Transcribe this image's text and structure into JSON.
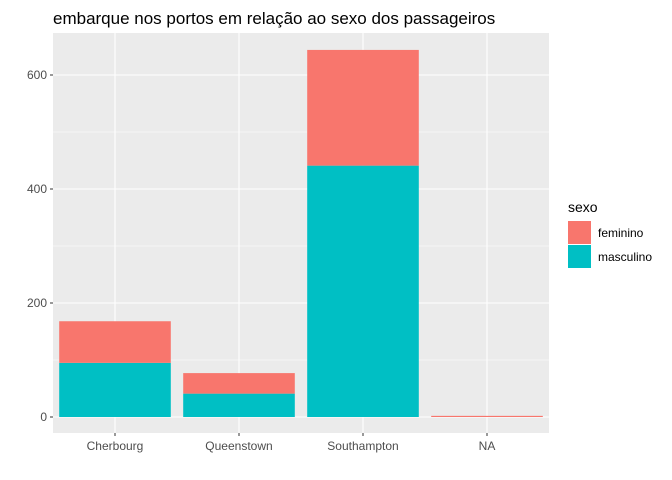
{
  "chart_data": {
    "type": "bar",
    "stacked": true,
    "title": "embarque nos portos em relação ao sexo dos passageiros",
    "xlabel": "",
    "ylabel": "",
    "categories": [
      "Cherbourg",
      "Queenstown",
      "Southampton",
      "NA"
    ],
    "series": [
      {
        "name": "feminino",
        "color": "#F8766D",
        "values": [
          73,
          36,
          203,
          2
        ]
      },
      {
        "name": "masculino",
        "color": "#00BFC4",
        "values": [
          95,
          41,
          441,
          0
        ]
      }
    ],
    "yticks": [
      0,
      200,
      400,
      600
    ],
    "ylim": [
      -32,
      677
    ],
    "grid": true,
    "legend": {
      "title": "sexo",
      "position": "right"
    }
  }
}
